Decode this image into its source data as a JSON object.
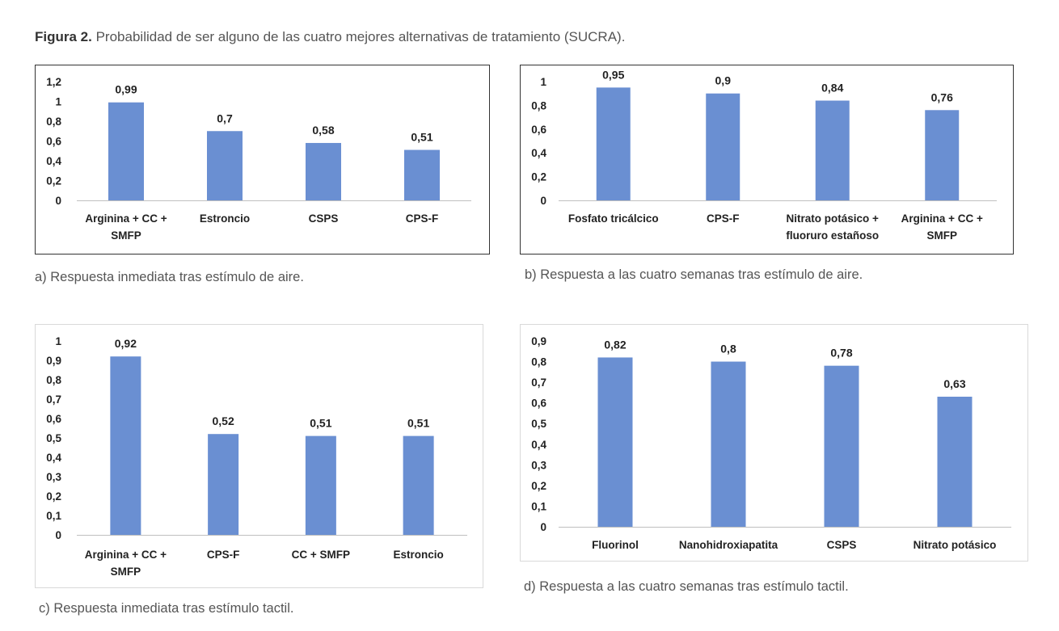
{
  "figure": {
    "label": "Figura 2.",
    "text": "Probabilidad de ser alguno de las cuatro mejores alternativas de tratamiento (SUCRA)."
  },
  "captions": {
    "a": "a) Respuesta inmediata tras estímulo de aire.",
    "b": "b) Respuesta a las cuatro semanas tras estímulo de aire.",
    "c": "c) Respuesta inmediata tras estímulo tactil.",
    "d": "d) Respuesta a las cuatro semanas tras estímulo tactil."
  },
  "colors": {
    "bar": "#6a8fd2",
    "axis": "#bfbfbf",
    "border_dark": "#333333",
    "border_light": "#d9d9d9"
  },
  "chart_data": [
    {
      "type": "bar",
      "panel": "a",
      "categories": [
        [
          "Arginina + CC +",
          "SMFP"
        ],
        [
          "Estroncio"
        ],
        [
          "CSPS"
        ],
        [
          "CPS-F"
        ]
      ],
      "values": [
        0.99,
        0.7,
        0.58,
        0.51
      ],
      "data_labels": [
        "0,99",
        "0,7",
        "0,58",
        "0,51"
      ],
      "yticks": [
        "0",
        "0,2",
        "0,4",
        "0,6",
        "0,8",
        "1",
        "1,2"
      ],
      "ylim": [
        0,
        1.2
      ],
      "title": "",
      "xlabel": "",
      "ylabel": "",
      "grid": false
    },
    {
      "type": "bar",
      "panel": "b",
      "categories": [
        [
          "Fosfato tricálcico"
        ],
        [
          "CPS-F"
        ],
        [
          "Nitrato potásico +",
          "fluoruro estañoso"
        ],
        [
          "Arginina + CC +",
          "SMFP"
        ]
      ],
      "values": [
        0.95,
        0.9,
        0.84,
        0.76
      ],
      "data_labels": [
        "0,95",
        "0,9",
        "0,84",
        "0,76"
      ],
      "yticks": [
        "0",
        "0,2",
        "0,4",
        "0,6",
        "0,8",
        "1"
      ],
      "ylim": [
        0,
        1
      ],
      "title": "",
      "xlabel": "",
      "ylabel": "",
      "grid": false
    },
    {
      "type": "bar",
      "panel": "c",
      "categories": [
        [
          "Arginina + CC +",
          "SMFP"
        ],
        [
          "CPS-F"
        ],
        [
          "CC + SMFP"
        ],
        [
          "Estroncio"
        ]
      ],
      "values": [
        0.92,
        0.52,
        0.51,
        0.51
      ],
      "data_labels": [
        "0,92",
        "0,52",
        "0,51",
        "0,51"
      ],
      "yticks": [
        "0",
        "0,1",
        "0,2",
        "0,3",
        "0,4",
        "0,5",
        "0,6",
        "0,7",
        "0,8",
        "0,9",
        "1"
      ],
      "ylim": [
        0,
        1
      ],
      "title": "",
      "xlabel": "",
      "ylabel": "",
      "grid": false
    },
    {
      "type": "bar",
      "panel": "d",
      "categories": [
        [
          "Fluorinol"
        ],
        [
          "Nanohidroxiapatita"
        ],
        [
          "CSPS"
        ],
        [
          "Nitrato potásico"
        ]
      ],
      "values": [
        0.82,
        0.8,
        0.78,
        0.63
      ],
      "data_labels": [
        "0,82",
        "0,8",
        "0,78",
        "0,63"
      ],
      "yticks": [
        "0",
        "0,1",
        "0,2",
        "0,3",
        "0,4",
        "0,5",
        "0,6",
        "0,7",
        "0,8",
        "0,9"
      ],
      "ylim": [
        0,
        0.9
      ],
      "title": "",
      "xlabel": "",
      "ylabel": "",
      "grid": false
    }
  ]
}
